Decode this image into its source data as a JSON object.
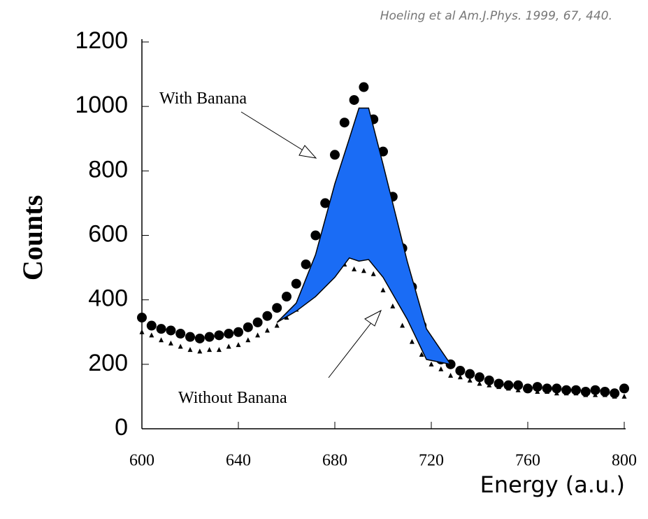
{
  "chart_data": {
    "type": "scatter",
    "citation": "Hoeling et al Am.J.Phys. 1999, 67, 440.",
    "y_label": "Counts",
    "x_label": "Energy (a.u.)",
    "annotations": [
      "With Banana",
      "Without Banana"
    ],
    "xlim": [
      600,
      800
    ],
    "xticks": [
      600,
      640,
      680,
      720,
      760,
      800
    ],
    "ylim": [
      0,
      1200
    ],
    "yticks": [
      0,
      200,
      400,
      600,
      800,
      1000,
      1200
    ],
    "x": [
      600,
      604,
      608,
      612,
      616,
      620,
      624,
      628,
      632,
      636,
      640,
      644,
      648,
      652,
      656,
      660,
      664,
      668,
      672,
      676,
      680,
      684,
      688,
      692,
      696,
      700,
      704,
      708,
      712,
      716,
      720,
      724,
      728,
      732,
      736,
      740,
      744,
      748,
      752,
      756,
      760,
      764,
      768,
      772,
      776,
      780,
      784,
      788,
      792,
      796,
      800
    ],
    "series": [
      {
        "name": "With Banana",
        "marker": "circle",
        "color": "#000000",
        "values": [
          345,
          320,
          310,
          305,
          295,
          285,
          280,
          285,
          290,
          295,
          300,
          315,
          330,
          350,
          375,
          410,
          450,
          510,
          600,
          700,
          850,
          950,
          1020,
          1060,
          960,
          860,
          720,
          560,
          440,
          320,
          260,
          215,
          200,
          180,
          170,
          160,
          150,
          140,
          135,
          135,
          125,
          130,
          125,
          125,
          120,
          120,
          115,
          120,
          115,
          110,
          125
        ]
      },
      {
        "name": "Without Banana",
        "marker": "triangle",
        "color": "#000000",
        "values": [
          300,
          290,
          275,
          265,
          255,
          245,
          240,
          245,
          245,
          255,
          260,
          275,
          290,
          305,
          320,
          345,
          370,
          400,
          430,
          460,
          490,
          510,
          495,
          490,
          480,
          430,
          380,
          320,
          270,
          230,
          200,
          185,
          165,
          160,
          150,
          140,
          135,
          130,
          125,
          120,
          120,
          115,
          115,
          110,
          110,
          110,
          105,
          105,
          105,
          100,
          100
        ]
      }
    ],
    "band": {
      "color": "#1a6cf5",
      "x": [
        656,
        664,
        672,
        680,
        686,
        690,
        694,
        700,
        710,
        718,
        728
      ],
      "upper": [
        330,
        390,
        540,
        760,
        900,
        995,
        995,
        820,
        520,
        310,
        200
      ],
      "lower": [
        330,
        365,
        410,
        470,
        530,
        520,
        525,
        470,
        340,
        215,
        200
      ]
    }
  }
}
